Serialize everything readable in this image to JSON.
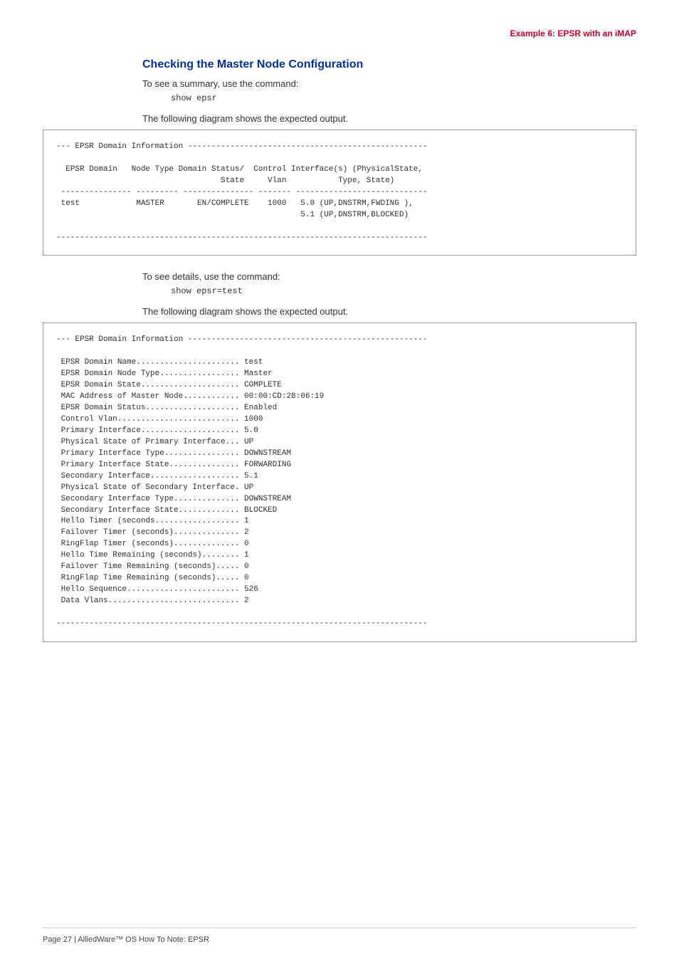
{
  "header": {
    "right_title": "Example 6: EPSR with an iMAP"
  },
  "section": {
    "title": "Checking the Master Node Configuration",
    "intro1": "To see a summary, use the command:",
    "cmd1": "show epsr",
    "diag1_intro": "The following diagram shows the expected output.",
    "intro2": "To see details, use the command:",
    "cmd2": "show epsr=test",
    "diag2_intro": "The following diagram shows the expected output."
  },
  "codebox1": "--- EPSR Domain Information ---------------------------------------------------\n\n  EPSR Domain   Node Type Domain Status/  Control Interface(s) (PhysicalState,\n                                   State     Vlan           Type, State)\n --------------- --------- --------------- ------- ----------------------------\n test            MASTER       EN/COMPLETE    1000   5.0 (UP,DNSTRM,FWDING ),\n                                                    5.1 (UP,DNSTRM,BLOCKED)\n\n-------------------------------------------------------------------------------",
  "codebox2": "--- EPSR Domain Information ---------------------------------------------------\n\n EPSR Domain Name...................... test\n EPSR Domain Node Type................. Master\n EPSR Domain State..................... COMPLETE\n MAC Address of Master Node............ 00:00:CD:28:06:19\n EPSR Domain Status.................... Enabled\n Control Vlan.......................... 1000\n Primary Interface..................... 5.0\n Physical State of Primary Interface... UP\n Primary Interface Type................ DOWNSTREAM\n Primary Interface State............... FORWARDING\n Secondary Interface................... 5.1\n Physical State of Secondary Interface. UP\n Secondary Interface Type.............. DOWNSTREAM\n Secondary Interface State............. BLOCKED\n Hello Timer (seconds.................. 1\n Failover Timer (seconds).............. 2\n RingFlap Timer (seconds).............. 0\n Hello Time Remaining (seconds)........ 1\n Failover Time Remaining (seconds)..... 0\n RingFlap Time Remaining (seconds)..... 0\n Hello Sequence........................ 526\n Data Vlans............................ 2\n\n-------------------------------------------------------------------------------",
  "footer": {
    "text": "Page 27 | AlliedWare™ OS How To Note: EPSR"
  },
  "colors": {
    "accent_blue": "#003399",
    "accent_red": "#cc0033",
    "border": "#999999",
    "text": "#333333"
  }
}
